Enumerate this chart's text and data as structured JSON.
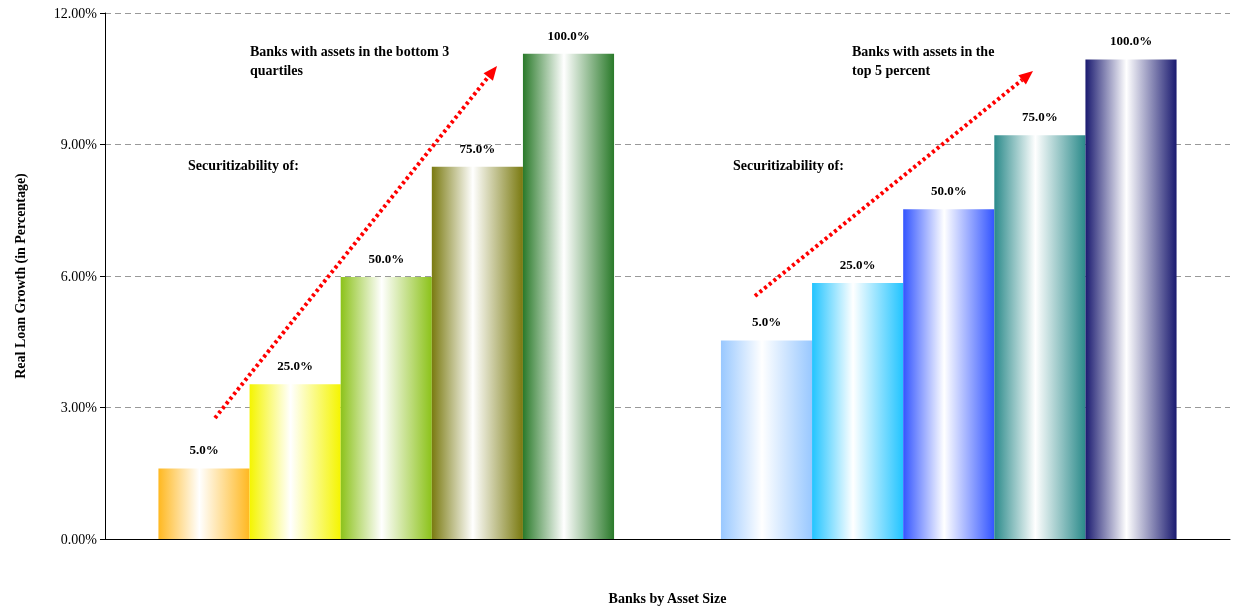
{
  "chart_data": {
    "type": "bar",
    "xlabel": "Banks by Asset Size",
    "ylabel": "Real Loan Growth (in Percentage)",
    "categories": [
      null,
      null
    ],
    "series": [
      {
        "name": "5.0%",
        "colors": [
          "#ffb820",
          "#99c8ff"
        ],
        "values": [
          1.61,
          4.53
        ]
      },
      {
        "name": "25.0%",
        "colors": [
          "#f5f500",
          "#22c4ff"
        ],
        "values": [
          3.53,
          5.84
        ]
      },
      {
        "name": "50.0%",
        "colors": [
          "#8cc21a",
          "#3355ff"
        ],
        "values": [
          5.98,
          7.52
        ]
      },
      {
        "name": "75.0%",
        "colors": [
          "#7a7a10",
          "#2a8a8a"
        ],
        "values": [
          8.49,
          9.21
        ]
      },
      {
        "name": "100.0%",
        "colors": [
          "#2a7a2a",
          "#1a1a70"
        ],
        "values": [
          11.07,
          10.94
        ]
      }
    ],
    "ylim": [
      0,
      12
    ],
    "yticks": [
      {
        "value": 0,
        "label": "0.00%"
      },
      {
        "value": 3,
        "label": "3.00%"
      },
      {
        "value": 6,
        "label": "6.00%"
      },
      {
        "value": 9,
        "label": "9.00%"
      },
      {
        "value": 12,
        "label": "12.00%"
      }
    ],
    "grid": "y",
    "annotations": [
      "Banks with assets in the bottom 3 quartiles",
      "Securitizability of:",
      "Banks with assets in the top 5 percent",
      "Securitizability of:"
    ]
  }
}
